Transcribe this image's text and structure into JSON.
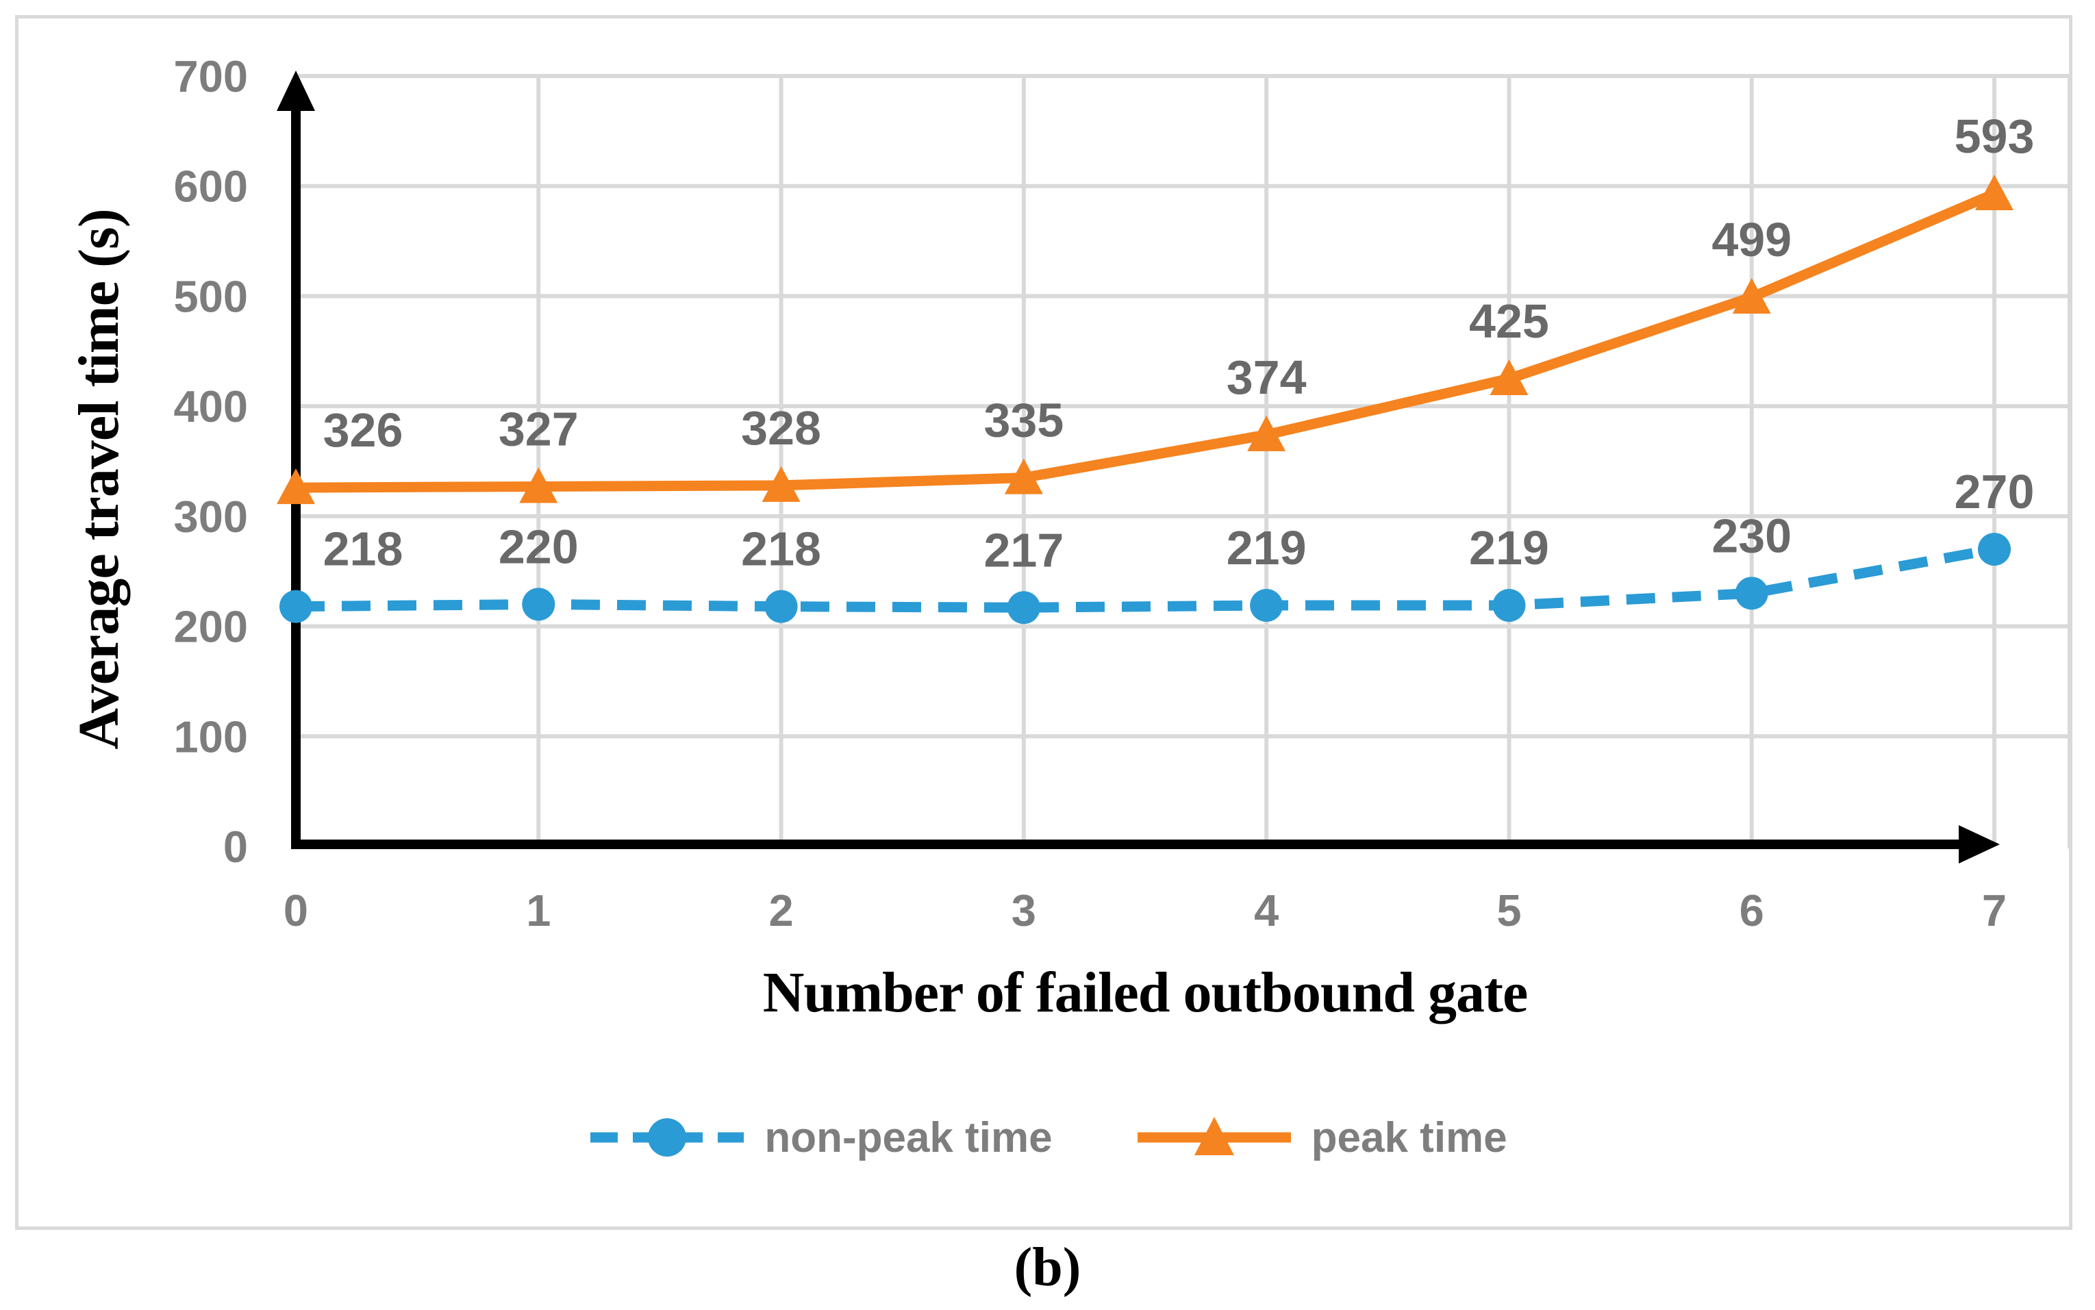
{
  "figure": {
    "caption": "(b)"
  },
  "colors": {
    "series_blue": "#2B9BD5",
    "series_orange": "#F5831F",
    "grid": "#D9D9D9",
    "axis": "#000000",
    "tick_label": "#7D7D7D",
    "data_label": "#696969",
    "legend_text": "#7E7E7E",
    "border": "#DADADA"
  },
  "chart_data": {
    "type": "line",
    "title": "",
    "xlabel": "Number of failed outbound gate",
    "ylabel": "Average travel time (s)",
    "categories": [
      "0",
      "1",
      "2",
      "3",
      "4",
      "5",
      "6",
      "7"
    ],
    "yticks": [
      0,
      100,
      200,
      300,
      400,
      500,
      600,
      700
    ],
    "ylim": [
      0,
      700
    ],
    "grid": true,
    "legend_position": "bottom",
    "series": [
      {
        "name": "non-peak time",
        "marker": "circle",
        "line_style": "dashed",
        "color": "#2B9BD5",
        "values": [
          218,
          220,
          218,
          217,
          219,
          219,
          230,
          270
        ]
      },
      {
        "name": "peak time",
        "marker": "triangle",
        "line_style": "solid",
        "color": "#F5831F",
        "values": [
          326,
          327,
          328,
          335,
          374,
          425,
          499,
          593
        ]
      }
    ]
  }
}
